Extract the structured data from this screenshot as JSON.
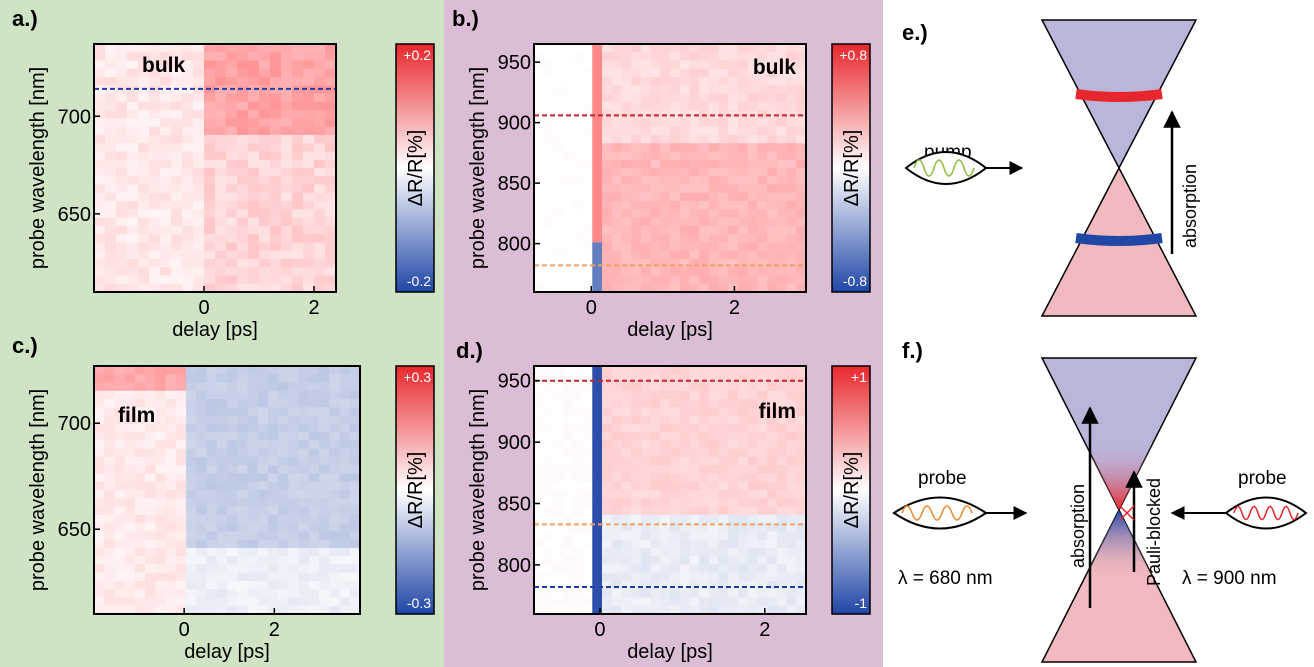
{
  "colors": {
    "green_bg": "#cfe3c5",
    "purple_bg": "#dcbdd6",
    "positive": "#e8272c",
    "negative": "#2046a6",
    "upper_cone": "#b9b6dc",
    "lower_cone": "#f2b9bf"
  },
  "chart_data": [
    {
      "panel": "a.)",
      "type": "heatmap",
      "label": "bulk",
      "xlabel": "delay [ps]",
      "ylabel": "probe wavelength [nm]",
      "xlim": [
        -2,
        2.4
      ],
      "ylim": [
        610,
        737
      ],
      "xticks": [
        0,
        2
      ],
      "yticks": [
        650,
        700
      ],
      "colorbar": {
        "label": "ΔR/R[%]",
        "max": "+0.2",
        "min": "-0.2"
      },
      "dashed_lines": [
        {
          "y": 714,
          "color": "#1f3fa8"
        }
      ]
    },
    {
      "panel": "b.)",
      "type": "heatmap",
      "label": "bulk",
      "xlabel": "delay [ps]",
      "ylabel": "probe wavelength [nm]",
      "xlim": [
        -0.8,
        3
      ],
      "ylim": [
        760,
        965
      ],
      "xticks": [
        0,
        2
      ],
      "yticks": [
        800,
        850,
        900,
        950
      ],
      "colorbar": {
        "label": "ΔR/R[%]",
        "max": "+0.8",
        "min": "-0.8"
      },
      "dashed_lines": [
        {
          "y": 906,
          "color": "#c0272d"
        },
        {
          "y": 782,
          "color": "#f0a060"
        }
      ]
    },
    {
      "panel": "c.)",
      "type": "heatmap",
      "label": "film",
      "xlabel": "delay [ps]",
      "ylabel": "probe wavelength [nm]",
      "xlim": [
        -2,
        3.9
      ],
      "ylim": [
        610,
        727
      ],
      "xticks": [
        0,
        2
      ],
      "yticks": [
        650,
        700
      ],
      "colorbar": {
        "label": "ΔR/R[%]",
        "max": "+0.3",
        "min": "-0.3"
      },
      "dashed_lines": []
    },
    {
      "panel": "d.)",
      "type": "heatmap",
      "label": "film",
      "xlabel": "delay [ps]",
      "ylabel": "probe wavelength [nm]",
      "xlim": [
        -0.8,
        2.5
      ],
      "ylim": [
        760,
        962
      ],
      "xticks": [
        0,
        2
      ],
      "yticks": [
        800,
        850,
        900,
        950
      ],
      "colorbar": {
        "label": "ΔR/R[%]",
        "max": "+1",
        "min": "-1"
      },
      "dashed_lines": [
        {
          "y": 950,
          "color": "#c0272d"
        },
        {
          "y": 833,
          "color": "#f0a060"
        },
        {
          "y": 782,
          "color": "#1f3fa8"
        }
      ]
    }
  ],
  "diagram_e": {
    "panel": "e.)",
    "pump": "pump",
    "absorption": "absorption"
  },
  "diagram_f": {
    "panel": "f.)",
    "probe_left": "probe",
    "lambda_left": "λ = 680 nm",
    "probe_right": "probe",
    "lambda_right": "λ = 900 nm",
    "absorption": "absorption",
    "pauli": "Pauli-blocked"
  }
}
